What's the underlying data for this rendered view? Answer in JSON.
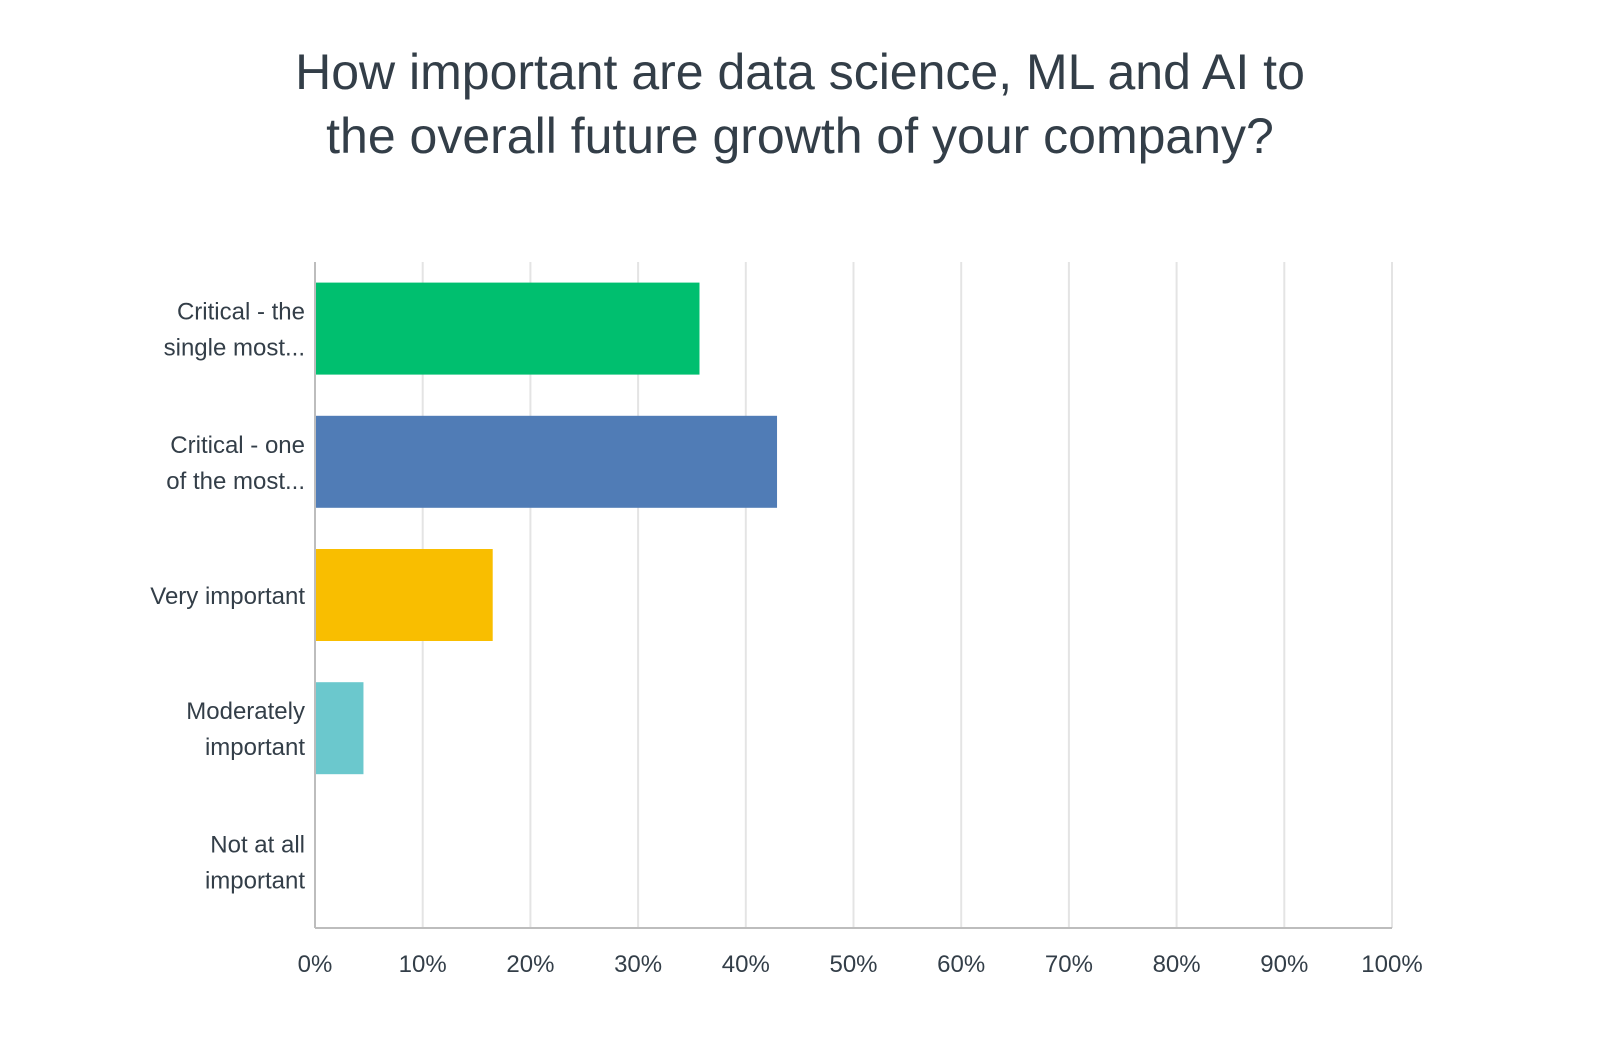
{
  "chart_data": {
    "type": "bar",
    "orientation": "horizontal",
    "title_lines": [
      "How important are data science, ML and AI to",
      "the overall future growth of your company?"
    ],
    "categories": [
      [
        "Critical - the",
        "single most..."
      ],
      [
        "Critical - one",
        "of the most..."
      ],
      [
        "Very important"
      ],
      [
        "Moderately",
        "important"
      ],
      [
        "Not at all",
        "important"
      ]
    ],
    "values": [
      35.7,
      42.9,
      16.5,
      4.5,
      0
    ],
    "colors": [
      "#00bf6f",
      "#507cb6",
      "#f9be00",
      "#6bc8cd",
      "#9f9fa1"
    ],
    "xlim": [
      0,
      100
    ],
    "x_ticks": [
      0,
      10,
      20,
      30,
      40,
      50,
      60,
      70,
      80,
      90,
      100
    ],
    "x_tick_labels": [
      "0%",
      "10%",
      "20%",
      "30%",
      "40%",
      "50%",
      "60%",
      "70%",
      "80%",
      "90%",
      "100%"
    ],
    "grid": true,
    "legend": "none"
  }
}
